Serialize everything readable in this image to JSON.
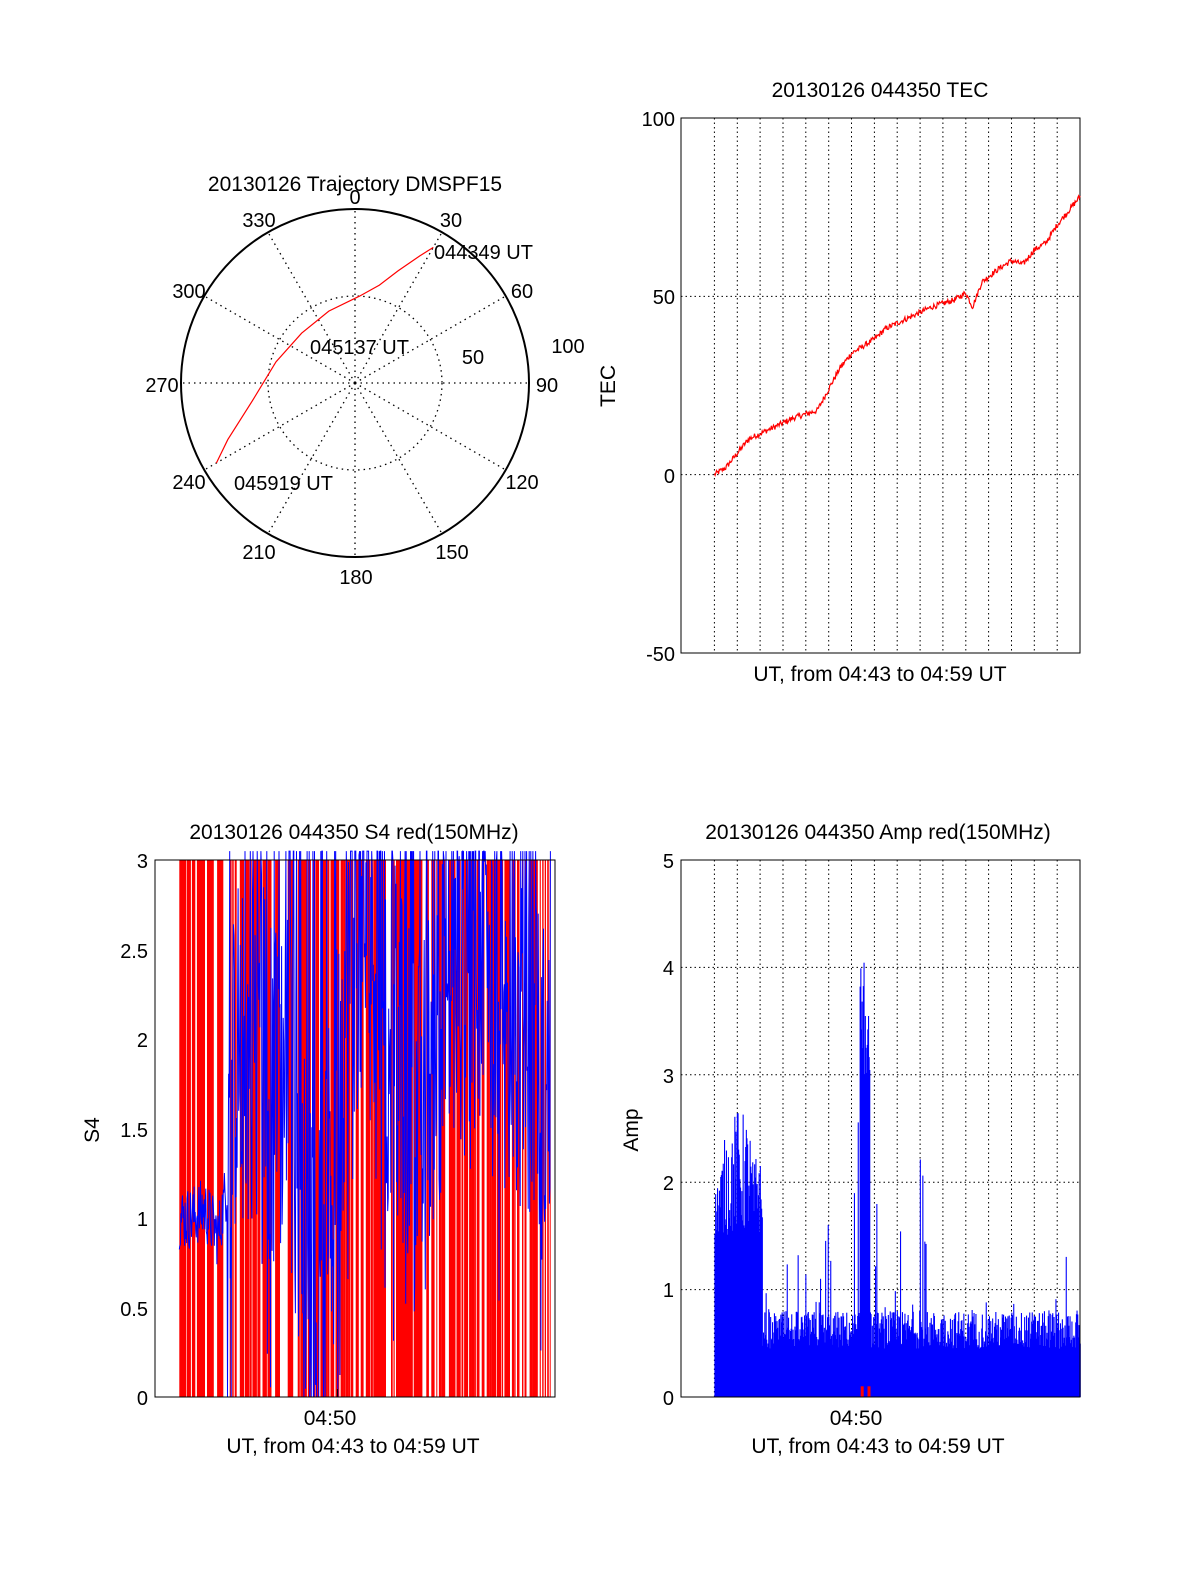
{
  "chart_data": [
    {
      "type": "polar",
      "title": "20130126 Trajectory DMSPF15",
      "angle_labels": [
        "0",
        "30",
        "60",
        "90",
        "120",
        "150",
        "180",
        "210",
        "240",
        "270",
        "300",
        "330"
      ],
      "radial_labels": [
        "50",
        "100"
      ],
      "rlim": [
        0,
        100
      ],
      "grid": true,
      "annotations": [
        "044349 UT",
        "045137 UT",
        "045919 UT"
      ],
      "colors": {
        "track": "#ff0000",
        "axis": "#000000"
      },
      "series": [
        {
          "azimuth": [
            30,
            27,
            21,
            14,
            3,
            340,
            313,
            285,
            260,
            246,
            240
          ],
          "zenith": [
            90,
            82,
            69,
            58,
            50,
            44,
            42,
            47,
            60,
            80,
            92
          ]
        }
      ]
    },
    {
      "type": "line",
      "title": "20130126 044350 TEC",
      "xlabel": "UT, from 04:43 to 04:59 UT",
      "ylabel": "TEC",
      "ylim": [
        -50,
        100
      ],
      "yticks": [
        "100",
        "50",
        "0",
        "-50"
      ],
      "grid": true,
      "colors": {
        "line": "#ff0000"
      },
      "series": [
        {
          "x_min": [
            0.5,
            1.0,
            1.5,
            2.0,
            3.0,
            4.0,
            5.0,
            5.5,
            6.0,
            6.5,
            7.0,
            7.5,
            8.0,
            9.0,
            10.0,
            10.5,
            11.0,
            11.5,
            11.8,
            12.2,
            13.0,
            13.5,
            14.0,
            14.5,
            15.0,
            15.5,
            16.0,
            16.5
          ],
          "y": [
            0,
            2,
            6,
            10,
            13,
            16,
            18,
            24,
            30,
            34,
            36,
            38,
            41,
            44,
            47,
            48,
            49,
            51,
            47,
            54,
            58,
            60,
            59,
            63,
            65,
            70,
            74,
            78
          ]
        }
      ]
    },
    {
      "type": "line",
      "title": "20130126 044350 S4 red(150MHz)",
      "xlabel": "UT, from 04:43 to 04:59 UT",
      "ylabel": "S4",
      "ylim": [
        0,
        3
      ],
      "yticks": [
        "3",
        "2.5",
        "2",
        "1.5",
        "1",
        "0.5",
        "0"
      ],
      "xticks": [
        "04:50"
      ],
      "grid": true,
      "colors": {
        "red": "#ff0000",
        "blue": "#0000ff"
      },
      "series": [
        {
          "name": "",
          "color": "red",
          "x_min": [
            0.1,
            16.3
          ],
          "y": [
            0,
            3
          ],
          "style": "dense vertical spikes"
        },
        {
          "name": "",
          "color": "blue",
          "x_min": [
            0.1,
            0.6,
            1.2,
            1.8,
            2.2,
            2.6,
            3.0,
            3.6,
            4.2,
            4.8,
            5.5,
            6.0,
            6.8,
            7.5,
            8.5,
            9.5,
            10.5,
            11.5,
            12.5,
            13.5,
            14.5,
            15.5,
            16.3
          ],
          "y": [
            1.0,
            1.0,
            1.05,
            0.9,
            1.2,
            2.0,
            1.8,
            2.2,
            1.6,
            1.9,
            1.0,
            0.6,
            1.2,
            2.5,
            2.7,
            2.0,
            1.5,
            2.1,
            2.3,
            2.6,
            2.0,
            1.9,
            1.6
          ]
        }
      ]
    },
    {
      "type": "bar",
      "title": "20130126 044350 Amp red(150MHz)",
      "xlabel": "UT, from 04:43 to 04:59 UT",
      "ylabel": "Amp",
      "ylim": [
        0,
        5
      ],
      "yticks": [
        "5",
        "4",
        "3",
        "2",
        "1",
        "0"
      ],
      "xticks": [
        "04:50"
      ],
      "grid": true,
      "colors": {
        "blue": "#0000ff",
        "red": "#ff0000"
      },
      "series": [
        {
          "name": "",
          "color": "blue",
          "x_min": [
            0.5,
            1.0,
            1.5,
            2.0,
            2.2,
            2.4,
            2.8,
            3.0,
            4.0,
            5.0,
            5.8,
            6.5,
            6.9,
            7.0,
            7.1,
            7.2,
            8.0,
            9.5,
            10.0,
            11.0,
            12.0,
            13.0,
            14.0,
            15.0,
            16.0,
            16.5
          ],
          "y": [
            1.9,
            2.5,
            2.7,
            2.6,
            2.1,
            2.6,
            0.8,
            1.2,
            1.3,
            0.9,
            2.2,
            1.0,
            4.0,
            3.7,
            4.1,
            3.5,
            0.7,
            2.9,
            0.6,
            1.0,
            0.8,
            1.1,
            0.9,
            0.7,
            1.5,
            1.1
          ]
        },
        {
          "name": "",
          "color": "red",
          "x_min": [
            6.9,
            7.2
          ],
          "y": [
            0.1,
            0.1
          ]
        }
      ]
    }
  ]
}
